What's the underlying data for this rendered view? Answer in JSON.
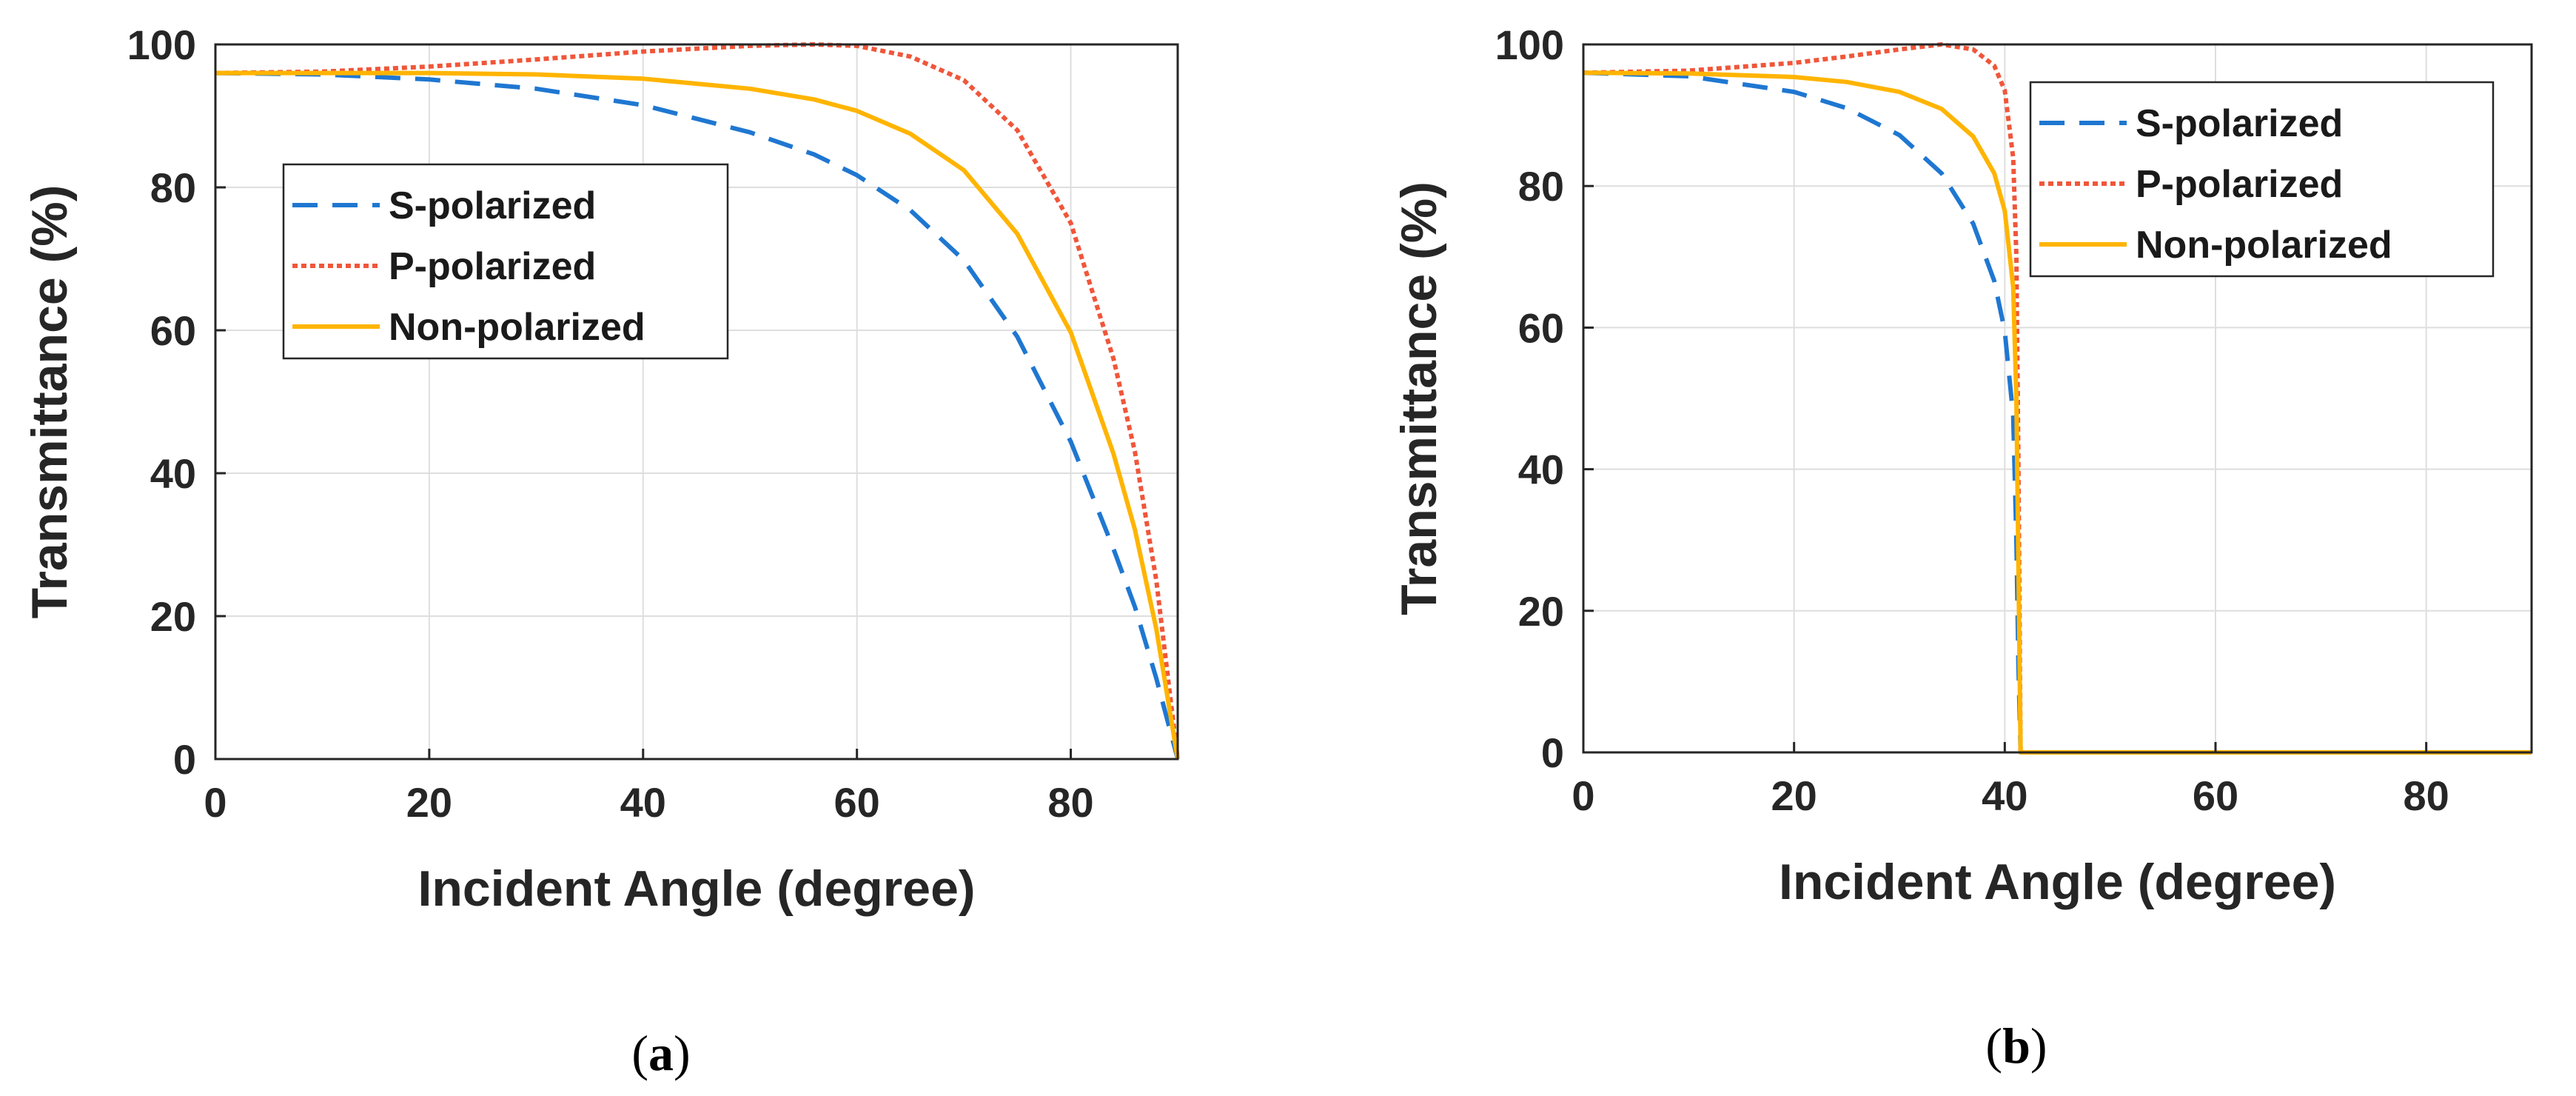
{
  "chart_data": [
    {
      "type": "line",
      "panel": "(a)",
      "panel_open": "(",
      "panel_letter": "a",
      "panel_close": ")",
      "xlabel": "Incident Angle (degree)",
      "ylabel": "Transmittance (%)",
      "xlim": [
        0,
        90
      ],
      "ylim": [
        0,
        100
      ],
      "xticks": [
        "0",
        "20",
        "40",
        "60",
        "80"
      ],
      "yticks": [
        "0",
        "20",
        "40",
        "60",
        "80",
        "100"
      ],
      "grid": true,
      "legend_position": "upper-left",
      "x": [
        0,
        10,
        20,
        30,
        40,
        50,
        56,
        60,
        65,
        70,
        75,
        80,
        84,
        86,
        88,
        90
      ],
      "series": [
        {
          "name": "S-polarized",
          "color": "#1f77d1",
          "style": "dashed",
          "values": [
            96,
            95.8,
            95.1,
            93.8,
            91.5,
            87.7,
            84.6,
            81.7,
            76.8,
            69.8,
            59.1,
            44.4,
            29.4,
            21.3,
            11.3,
            0
          ]
        },
        {
          "name": "P-polarized",
          "color": "#f0563a",
          "style": "dotted",
          "values": [
            96,
            96.2,
            96.9,
            97.9,
            99.0,
            99.8,
            100,
            99.8,
            98.3,
            95.0,
            88.0,
            75.0,
            56.0,
            43.0,
            25.0,
            0
          ]
        },
        {
          "name": "Non-polarized",
          "color": "#ffb400",
          "style": "solid",
          "values": [
            96,
            96.0,
            96.0,
            95.8,
            95.2,
            93.8,
            92.3,
            90.7,
            87.5,
            82.4,
            73.5,
            59.7,
            42.7,
            32.1,
            18.2,
            0
          ]
        }
      ]
    },
    {
      "type": "line",
      "panel": "(b)",
      "panel_open": "(",
      "panel_letter": "b",
      "panel_close": ")",
      "xlabel": "Incident Angle (degree)",
      "ylabel": "Transmittance (%)",
      "xlim": [
        0,
        90
      ],
      "ylim": [
        0,
        100
      ],
      "xticks": [
        "0",
        "20",
        "40",
        "60",
        "80"
      ],
      "yticks": [
        "0",
        "20",
        "40",
        "60",
        "80",
        "100"
      ],
      "grid": true,
      "legend_position": "upper-right",
      "x": [
        0,
        10,
        20,
        25,
        30,
        34,
        37,
        39,
        40,
        40.8,
        41.1,
        41.3,
        41.5,
        50,
        60,
        70,
        80,
        90
      ],
      "series": [
        {
          "name": "S-polarized",
          "color": "#1f77d1",
          "style": "dashed",
          "values": [
            96,
            95.5,
            93.3,
            91.0,
            87.2,
            81.8,
            74.7,
            66.6,
            59.5,
            47.5,
            30.0,
            12.0,
            0,
            0,
            0,
            0,
            0,
            0
          ]
        },
        {
          "name": "P-polarized",
          "color": "#f0563a",
          "style": "dotted",
          "values": [
            96,
            96.3,
            97.4,
            98.3,
            99.3,
            100,
            99.3,
            97.0,
            93.5,
            84.0,
            70.0,
            40.0,
            0,
            0,
            0,
            0,
            0,
            0
          ]
        },
        {
          "name": "Non-polarized",
          "color": "#ffb400",
          "style": "solid",
          "values": [
            96,
            95.9,
            95.4,
            94.7,
            93.3,
            90.9,
            87.0,
            81.8,
            76.5,
            65.7,
            50.0,
            26.0,
            0,
            0,
            0,
            0,
            0,
            0
          ]
        }
      ]
    }
  ]
}
